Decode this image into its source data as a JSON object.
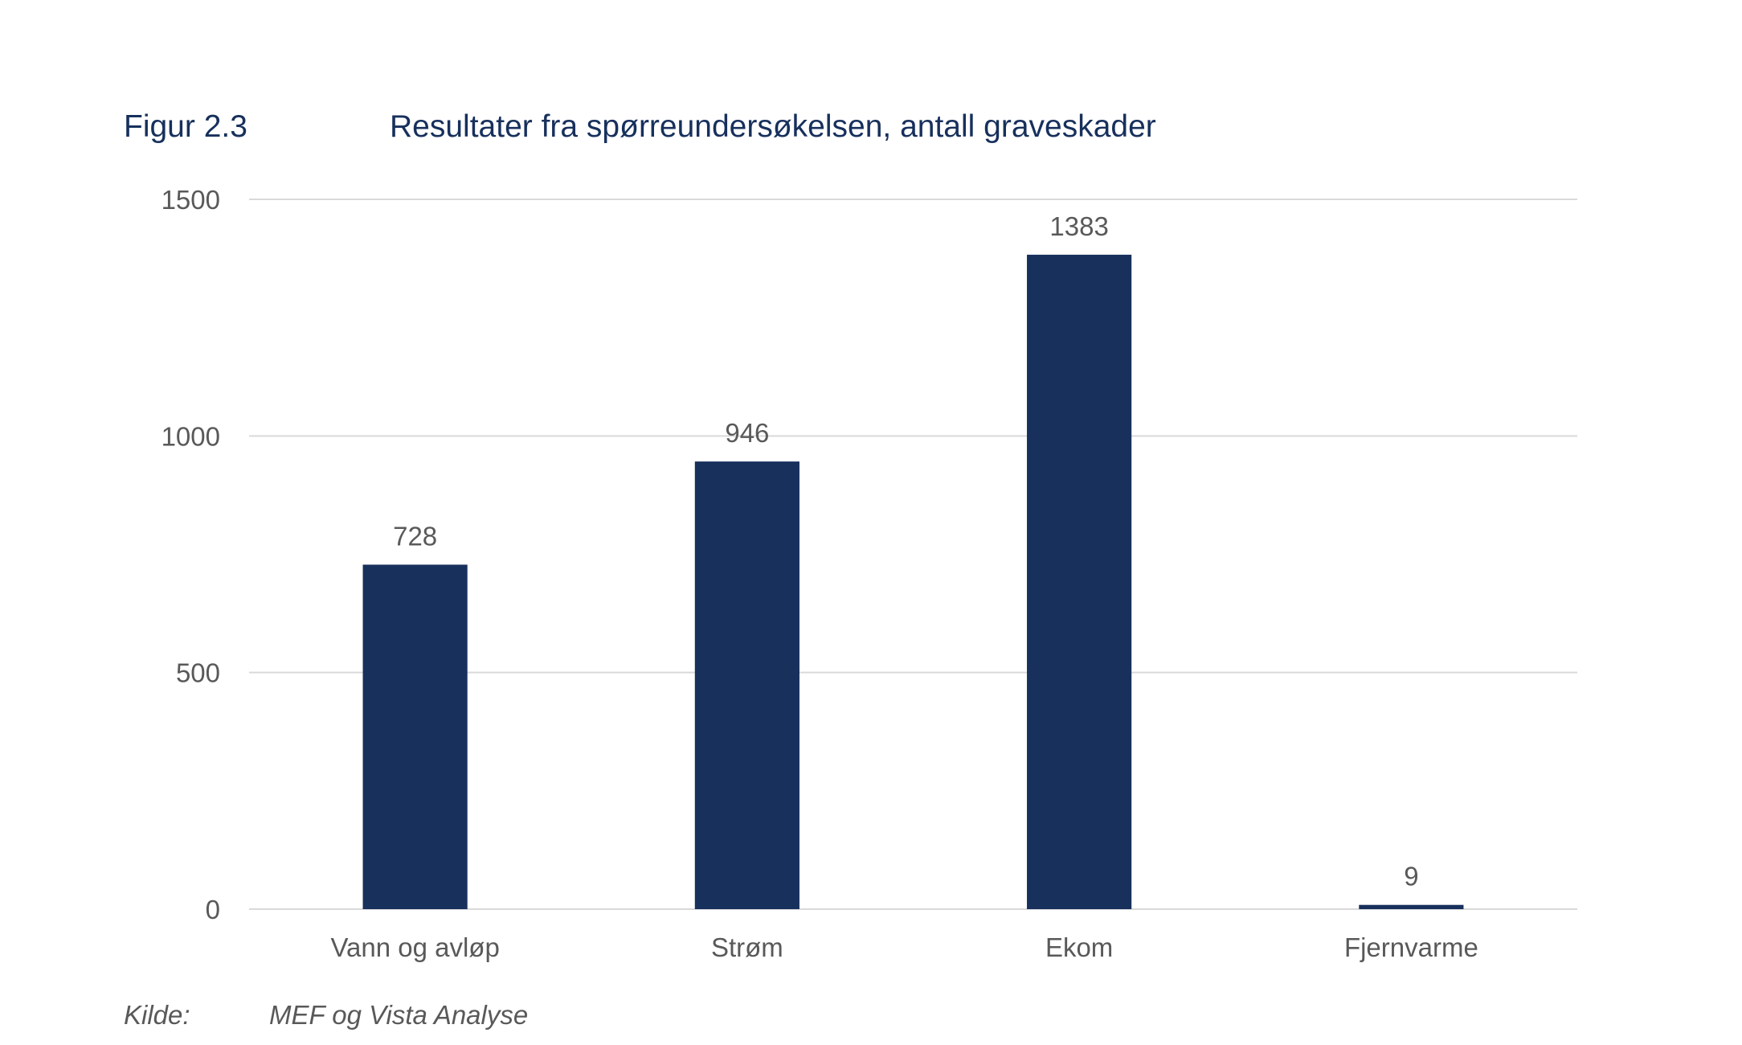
{
  "figure": {
    "number": "Figur 2.3",
    "title": "Resultater fra spørreundersøkelsen, antall graveskader"
  },
  "source": {
    "label": "Kilde:",
    "text": "MEF og Vista Analyse"
  },
  "chart_data": {
    "type": "bar",
    "title": "Resultater fra spørreundersøkelsen, antall graveskader",
    "categories": [
      "Vann og avløp",
      "Strøm",
      "Ekom",
      "Fjernvarme"
    ],
    "values": [
      728,
      946,
      1383,
      9
    ],
    "data_labels": [
      "728",
      "946",
      "1383",
      "9"
    ],
    "xlabel": "",
    "ylabel": "",
    "ylim": [
      0,
      1500
    ],
    "yticks": [
      0,
      500,
      1000,
      1500
    ],
    "ytick_labels": [
      "0",
      "500",
      "1000",
      "1500"
    ],
    "grid": true,
    "legend": "none",
    "bar_color": "#17305c",
    "grid_color": "#d9d9d9"
  }
}
